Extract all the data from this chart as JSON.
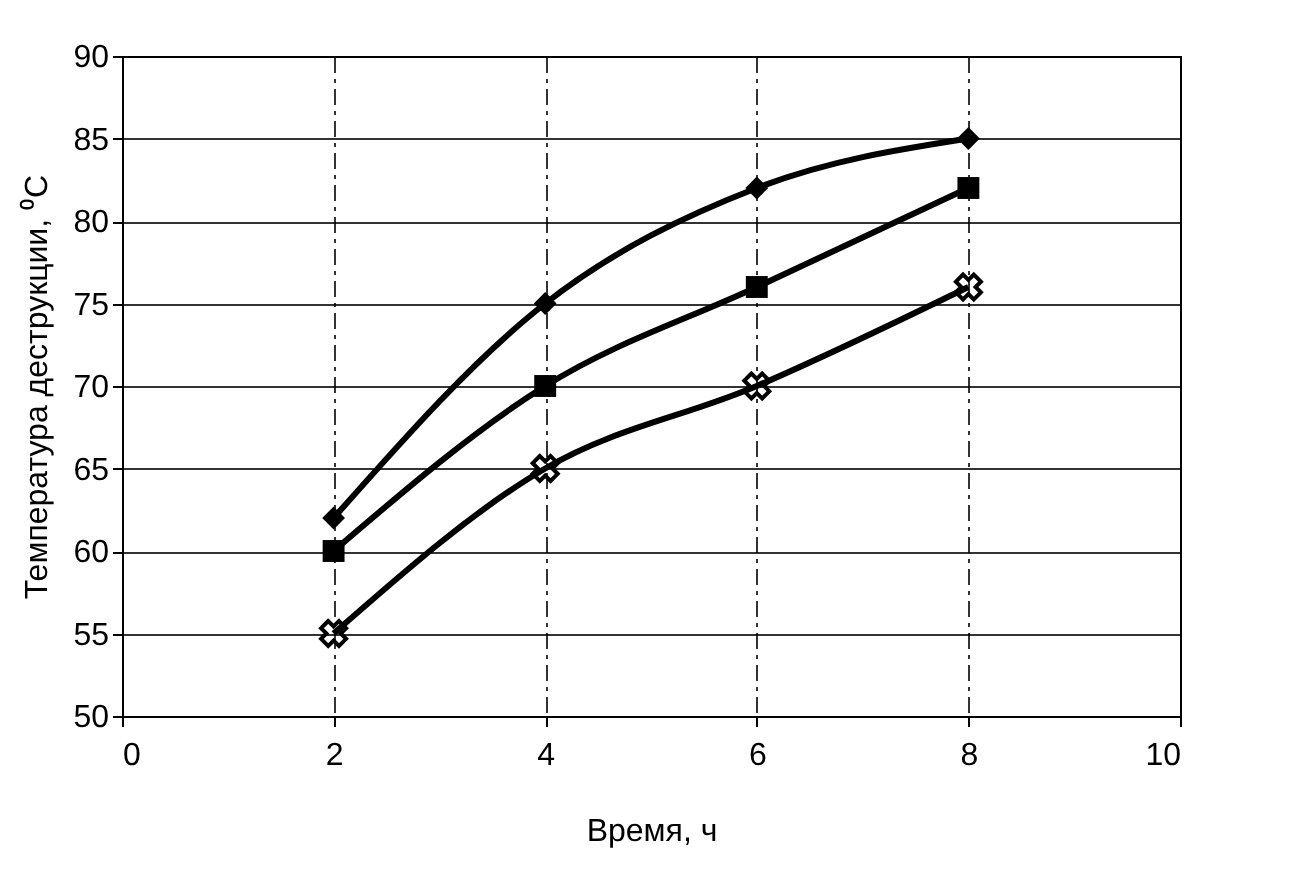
{
  "chart_data": {
    "type": "line",
    "xlabel": "Время, ч",
    "ylabel": "Температура деструкции, ⁰С",
    "x": [
      2,
      4,
      6,
      8
    ],
    "series": [
      {
        "color": "#000000",
        "marker": "diamond",
        "values": [
          62,
          75,
          82,
          85
        ]
      },
      {
        "color": "#000000",
        "marker": "square",
        "values": [
          60,
          70,
          76,
          82
        ]
      },
      {
        "color": "#000000",
        "marker": "cross",
        "values": [
          55,
          65,
          70,
          76
        ]
      }
    ],
    "xlim": [
      0,
      10
    ],
    "xticks": [
      0,
      2,
      4,
      6,
      8,
      10
    ],
    "ylim": [
      50,
      90
    ],
    "yticks": [
      50,
      55,
      60,
      65,
      70,
      75,
      80,
      85,
      90
    ],
    "grid": true,
    "line_style": "solid"
  }
}
